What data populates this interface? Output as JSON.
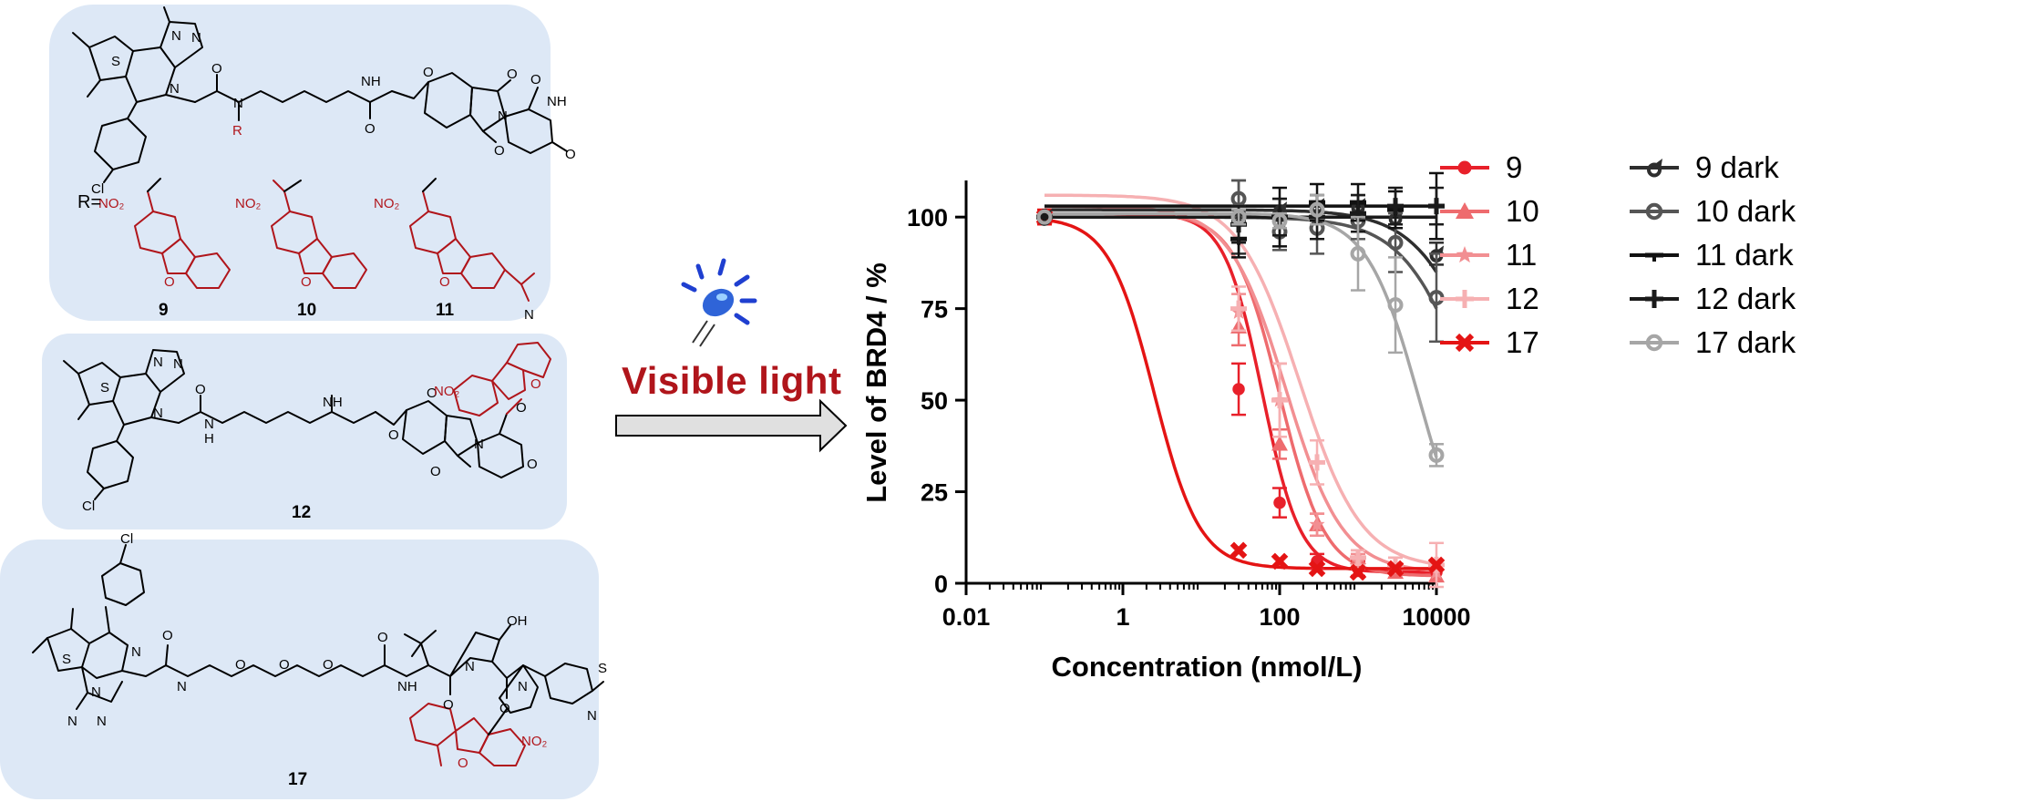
{
  "compounds": {
    "c9": "9",
    "c10": "10",
    "c11": "11",
    "c12": "12",
    "c17": "17",
    "r_prefix": "R=",
    "atoms": {
      "S": "S",
      "N": "N",
      "O": "O",
      "Cl": "Cl",
      "R": "R",
      "NH": "NH",
      "H": "H",
      "OH": "OH",
      "NO2": "NO₂"
    }
  },
  "arrow": {
    "label": "Visible light"
  },
  "colors": {
    "highlight": "#b0151b",
    "panel": "#dde8f6",
    "s9": "#e8202a",
    "s10": "#ee6b6e",
    "s11": "#f28f92",
    "s12": "#f6b0b2",
    "s17": "#e41414",
    "d9": "#2e2e2e",
    "d10": "#555555",
    "d11": "#111111",
    "d12": "#1a1a1a",
    "d17": "#a6a6a6"
  },
  "chart_data": {
    "type": "scatter",
    "title": "",
    "xlabel": "Concentration (nmol/L)",
    "ylabel": "Level of BRD4 / %",
    "xscale": "log",
    "xlim": [
      0.01,
      10000
    ],
    "ylim": [
      0,
      110
    ],
    "xticks": [
      0.01,
      1,
      100,
      10000
    ],
    "xtick_labels": [
      "0.01",
      "1",
      "100",
      "10000"
    ],
    "yticks": [
      0,
      25,
      50,
      75,
      100
    ],
    "ytick_labels": [
      "0",
      "25",
      "50",
      "75",
      "100"
    ],
    "legend_position": "right",
    "x": [
      0.1,
      30,
      100,
      300,
      1000,
      3000,
      10000
    ],
    "series": [
      {
        "name": "9",
        "marker": "circle",
        "values": [
          100,
          53,
          22,
          6,
          4,
          3,
          3
        ],
        "errors": [
          2,
          7,
          4,
          2,
          2,
          1,
          1
        ],
        "fit": {
          "bottom": 3,
          "top": 101,
          "ec50": 60,
          "hill": 1.8
        }
      },
      {
        "name": "10",
        "marker": "triangle",
        "values": [
          100,
          70,
          38,
          16,
          7,
          3,
          2
        ],
        "errors": [
          2,
          5,
          4,
          3,
          2,
          1,
          1
        ],
        "fit": {
          "bottom": 2,
          "top": 101,
          "ec50": 100,
          "hill": 1.5
        }
      },
      {
        "name": "11",
        "marker": "star",
        "values": [
          100,
          74,
          50,
          16,
          6,
          5,
          3
        ],
        "errors": [
          2,
          5,
          10,
          3,
          2,
          2,
          1
        ],
        "fit": {
          "bottom": 3,
          "top": 103,
          "ec50": 120,
          "hill": 1.2
        }
      },
      {
        "name": "12",
        "marker": "plus",
        "values": [
          100,
          75,
          50,
          33,
          7,
          5,
          5
        ],
        "errors": [
          2,
          6,
          10,
          6,
          2,
          2,
          6
        ],
        "fit": {
          "bottom": 4,
          "top": 106,
          "ec50": 180,
          "hill": 1.1
        }
      },
      {
        "name": "17",
        "marker": "x",
        "values": [
          100,
          9,
          6,
          4,
          3,
          4,
          5
        ],
        "errors": [
          2,
          1,
          1,
          1,
          1,
          1,
          1
        ],
        "fit": {
          "bottom": 4,
          "top": 100,
          "ec50": 2.5,
          "hill": 1.5
        }
      },
      {
        "name": "9 dark",
        "marker": "hourglass",
        "values": [
          100,
          100,
          102,
          103,
          103,
          100,
          90
        ],
        "errors": [
          1,
          10,
          3,
          3,
          3,
          3,
          3
        ],
        "fit": {
          "bottom": 0,
          "top": 102,
          "ec50": 50000,
          "hill": 1.0
        }
      },
      {
        "name": "10 dark",
        "marker": "circle-open",
        "values": [
          100,
          105,
          96,
          97,
          99,
          93,
          78
        ],
        "errors": [
          1,
          5,
          5,
          7,
          5,
          8,
          12
        ],
        "fit": {
          "bottom": 0,
          "top": 100,
          "ec50": 30000,
          "hill": 1.0
        }
      },
      {
        "name": "11 dark",
        "marker": "dash",
        "values": [
          100,
          94,
          100,
          104,
          104,
          102,
          103
        ],
        "errors": [
          1,
          5,
          8,
          5,
          5,
          5,
          9
        ],
        "fit": {
          "bottom": 103,
          "top": 103,
          "ec50": 100,
          "hill": 1.0
        }
      },
      {
        "name": "12 dark",
        "marker": "plus",
        "values": [
          100,
          98,
          100,
          100,
          101,
          103,
          103
        ],
        "errors": [
          1,
          5,
          5,
          6,
          5,
          5,
          5
        ],
        "fit": {
          "bottom": 100,
          "top": 100,
          "ec50": 100,
          "hill": 1.0
        }
      },
      {
        "name": "17 dark",
        "marker": "circle-open",
        "values": [
          100,
          100,
          99,
          102,
          90,
          76,
          35
        ],
        "errors": [
          1,
          2,
          2,
          4,
          10,
          13,
          3
        ],
        "fit": {
          "bottom": 0,
          "top": 101,
          "ec50": 6000,
          "hill": 1.3
        }
      }
    ]
  }
}
